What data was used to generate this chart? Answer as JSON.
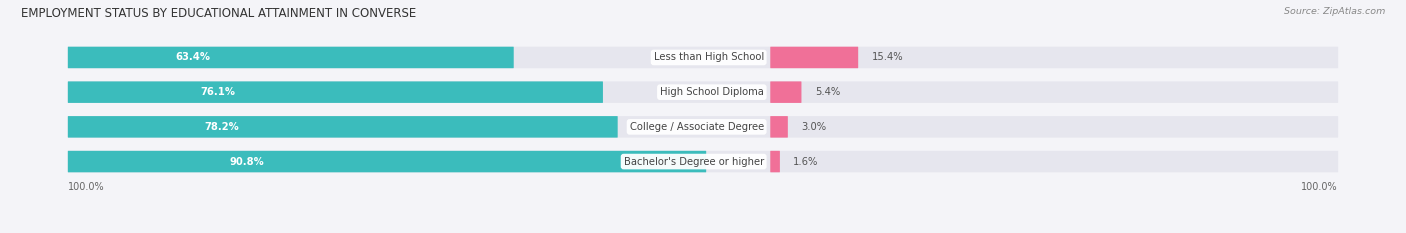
{
  "title": "EMPLOYMENT STATUS BY EDUCATIONAL ATTAINMENT IN CONVERSE",
  "source": "Source: ZipAtlas.com",
  "categories": [
    "Less than High School",
    "High School Diploma",
    "College / Associate Degree",
    "Bachelor's Degree or higher"
  ],
  "labor_force": [
    63.4,
    76.1,
    78.2,
    90.8
  ],
  "unemployed": [
    15.4,
    5.4,
    3.0,
    1.6
  ],
  "total_left": "100.0%",
  "total_right": "100.0%",
  "color_labor": "#3bbcbc",
  "color_unemployed": "#f07098",
  "color_bg_bar": "#e6e6ee",
  "color_bg_figure": "#f4f4f8",
  "bar_height": 0.58,
  "title_fontsize": 8.5,
  "label_fontsize": 7.2,
  "tick_fontsize": 7.0,
  "legend_fontsize": 7.2,
  "source_fontsize": 6.8,
  "lf_pct_fontsize": 7.2,
  "ue_pct_fontsize": 7.2
}
